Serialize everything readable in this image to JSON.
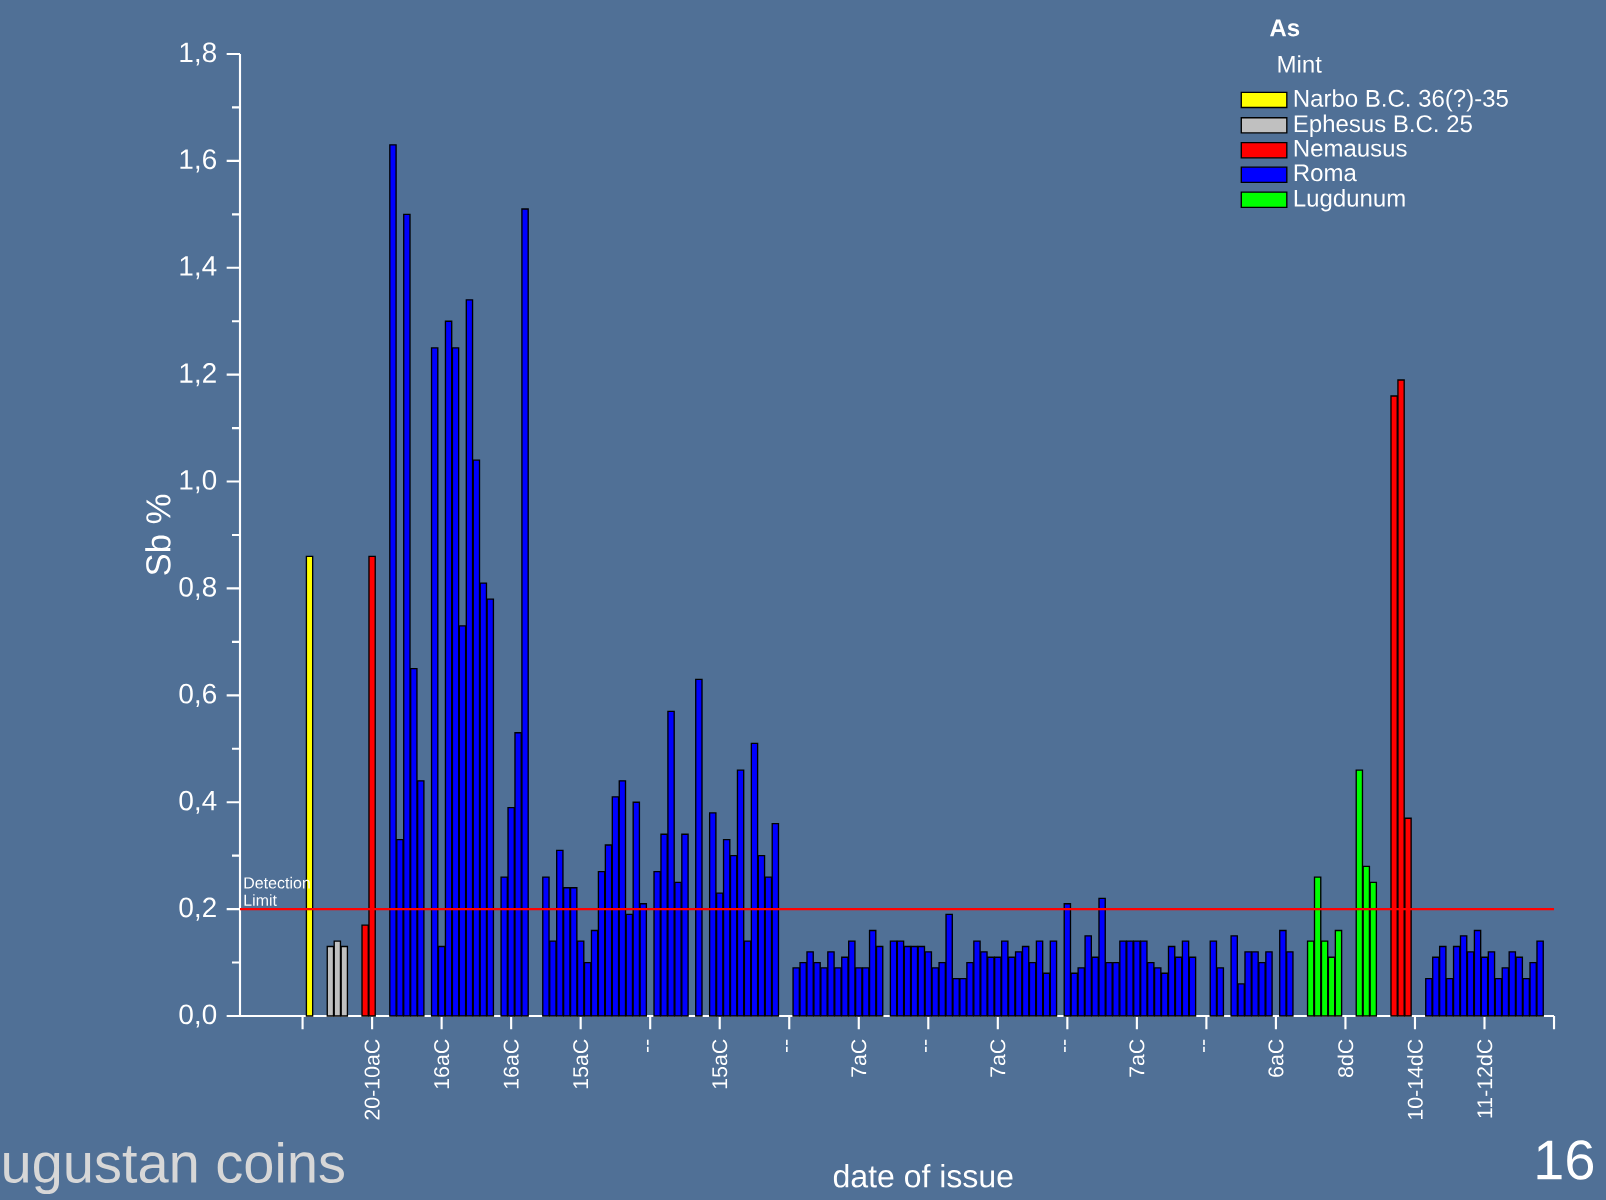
{
  "chart_data": {
    "type": "bar",
    "xlabel": "date of issue",
    "ylabel": "Sb %",
    "legend_title": "As",
    "legend": "top right",
    "ylim": [
      0,
      1.8
    ],
    "categories": [
      null,
      null,
      null,
      null,
      null,
      null,
      null,
      null,
      null,
      null,
      "20-10aC",
      null,
      null,
      null,
      null,
      null,
      null,
      null,
      null,
      null,
      "16aC",
      null,
      null,
      null,
      null,
      null,
      null,
      null,
      null,
      null,
      "16aC",
      null,
      null,
      null,
      null,
      null,
      null,
      null,
      null,
      null,
      "15aC",
      null,
      null,
      null,
      null,
      null,
      null,
      null,
      null,
      null,
      "--",
      null,
      null,
      null,
      null,
      null,
      null,
      null,
      null,
      null,
      "15aC",
      null,
      null,
      null,
      null,
      null,
      null,
      null,
      null,
      null,
      "--",
      null,
      null,
      null,
      null,
      null,
      null,
      null,
      null,
      null,
      "7aC",
      null,
      null,
      null,
      null,
      null,
      null,
      null,
      null,
      null,
      "--",
      null,
      null,
      null,
      null,
      null,
      null,
      null,
      null,
      null,
      "7aC",
      null,
      null,
      null,
      null,
      null,
      null,
      null,
      null,
      null,
      "--",
      null,
      null,
      null,
      null,
      null,
      null,
      null,
      null,
      null,
      "7aC",
      null,
      null,
      null,
      null,
      null,
      null,
      null,
      null,
      null,
      "--",
      null,
      null,
      null,
      null,
      null,
      null,
      null,
      null,
      null,
      "6aC",
      null,
      null,
      null,
      null,
      null,
      null,
      null,
      null,
      null,
      "8dC",
      null,
      null,
      null,
      null,
      null,
      null,
      null,
      null,
      null,
      "10-14dC",
      null,
      null,
      null,
      null,
      null,
      null,
      null,
      null,
      null,
      "11-12dC",
      null,
      null,
      null,
      null,
      null,
      null,
      null,
      null,
      null,
      null
    ],
    "yticks": [
      {
        "value": 0,
        "label": "0,0"
      },
      {
        "value": 0.2,
        "label": "0,2"
      },
      {
        "value": 0.4,
        "label": "0,4"
      },
      {
        "value": 0.6,
        "label": "0,6"
      },
      {
        "value": 0.8,
        "label": "0,8"
      },
      {
        "value": 1.0,
        "label": "1,0"
      },
      {
        "value": 1.2,
        "label": "1,2"
      },
      {
        "value": 1.4,
        "label": "1,4"
      },
      {
        "value": 1.6,
        "label": "1,6"
      },
      {
        "value": 1.8,
        "label": "1,8"
      }
    ],
    "ref_lines": [
      {
        "axis": "y",
        "value": 0.2,
        "label": "Detection Limit",
        "color": "#ff0000"
      }
    ],
    "annotations": [
      "Mint",
      "ugustan coins",
      "16"
    ],
    "series": [
      {
        "name": "Narbo     B.C. 36(?)-35",
        "color": "#ffff00",
        "values": [
          null,
          0.86,
          null,
          null,
          null,
          null,
          null,
          null,
          null,
          null,
          null,
          null,
          null,
          null,
          null,
          null,
          null,
          null,
          null,
          null,
          null,
          null,
          null,
          null,
          null,
          null,
          null,
          null,
          null,
          null,
          null,
          null,
          null,
          null,
          null,
          null,
          null,
          null,
          null,
          null,
          null,
          null,
          null,
          null,
          null,
          null,
          null,
          null,
          null,
          null,
          null,
          null,
          null,
          null,
          null,
          null,
          null,
          null,
          null,
          null,
          null,
          null,
          null,
          null,
          null,
          null,
          null,
          null,
          null,
          null,
          null,
          null,
          null,
          null,
          null,
          null,
          null,
          null,
          null,
          null,
          null,
          null,
          null,
          null,
          null,
          null,
          null,
          null,
          null,
          null,
          null,
          null,
          null,
          null,
          null,
          null,
          null,
          null,
          null,
          null,
          null,
          null,
          null,
          null,
          null,
          null,
          null,
          null,
          null,
          null,
          null,
          null,
          null,
          null,
          null,
          null,
          null,
          null,
          null,
          null,
          null,
          null,
          null,
          null,
          null,
          null,
          null,
          null,
          null,
          null,
          null,
          null,
          null,
          null,
          null,
          null,
          null,
          null,
          null,
          null,
          null,
          null,
          null,
          null,
          null,
          null,
          null,
          null,
          null,
          null,
          null,
          null,
          null,
          null,
          null,
          null,
          null,
          null,
          null,
          null,
          null,
          null,
          null,
          null,
          null,
          null,
          null,
          null,
          null,
          null,
          null,
          null,
          null,
          null,
          null,
          null,
          null,
          null,
          null,
          null,
          null
        ]
      },
      {
        "name": "Ephesus B.C. 25",
        "color": "#c0c0c0",
        "values": [
          null,
          null,
          null,
          null,
          0.13,
          0.14,
          0.13,
          null,
          null,
          null,
          null,
          null,
          null,
          null,
          null,
          null,
          null,
          null,
          null,
          null,
          null,
          null,
          null,
          null,
          null,
          null,
          null,
          null,
          null,
          null,
          null,
          null,
          null,
          null,
          null,
          null,
          null,
          null,
          null,
          null,
          null,
          null,
          null,
          null,
          null,
          null,
          null,
          null,
          null,
          null,
          null,
          null,
          null,
          null,
          null,
          null,
          null,
          null,
          null,
          null,
          null,
          null,
          null,
          null,
          null,
          null,
          null,
          null,
          null,
          null,
          null,
          null,
          null,
          null,
          null,
          null,
          null,
          null,
          null,
          null,
          null,
          null,
          null,
          null,
          null,
          null,
          null,
          null,
          null,
          null,
          null,
          null,
          null,
          null,
          null,
          null,
          null,
          null,
          null,
          null,
          null,
          null,
          null,
          null,
          null,
          null,
          null,
          null,
          null,
          null,
          null,
          null,
          null,
          null,
          null,
          null,
          null,
          null,
          null,
          null,
          null,
          null,
          null,
          null,
          null,
          null,
          null,
          null,
          null,
          null,
          null,
          null,
          null,
          null,
          null,
          null,
          null,
          null,
          null,
          null,
          null,
          null,
          null,
          null,
          null,
          null,
          null,
          null,
          null,
          null,
          null,
          null,
          null,
          null,
          null,
          null,
          null,
          null,
          null,
          null,
          null,
          null,
          null,
          null,
          null,
          null,
          null,
          null,
          null,
          null,
          null,
          null,
          null,
          null,
          null,
          null,
          null,
          null,
          null,
          null,
          null
        ]
      },
      {
        "name": "Nemausus",
        "color": "#ff0000",
        "values": [
          null,
          null,
          null,
          null,
          null,
          null,
          null,
          null,
          null,
          0.17,
          0.86,
          null,
          null,
          null,
          null,
          null,
          null,
          null,
          null,
          null,
          null,
          null,
          null,
          null,
          null,
          null,
          null,
          null,
          null,
          null,
          null,
          null,
          null,
          null,
          null,
          null,
          null,
          null,
          null,
          null,
          null,
          null,
          null,
          null,
          null,
          null,
          null,
          null,
          null,
          null,
          null,
          null,
          null,
          null,
          null,
          null,
          null,
          null,
          null,
          null,
          null,
          null,
          null,
          null,
          null,
          null,
          null,
          null,
          null,
          null,
          null,
          null,
          null,
          null,
          null,
          null,
          null,
          null,
          null,
          null,
          null,
          null,
          null,
          null,
          null,
          null,
          null,
          null,
          null,
          null,
          null,
          null,
          null,
          null,
          null,
          null,
          null,
          null,
          null,
          null,
          null,
          null,
          null,
          null,
          null,
          null,
          null,
          null,
          null,
          null,
          null,
          null,
          null,
          null,
          null,
          null,
          null,
          null,
          null,
          null,
          null,
          null,
          null,
          null,
          null,
          null,
          null,
          null,
          null,
          null,
          null,
          null,
          null,
          null,
          null,
          null,
          null,
          null,
          null,
          null,
          null,
          null,
          null,
          null,
          null,
          null,
          null,
          null,
          null,
          null,
          null,
          null,
          null,
          null,
          null,
          null,
          null,
          1.16,
          1.19,
          0.37,
          null,
          null,
          null,
          null,
          null,
          null,
          null,
          null,
          null,
          null,
          null,
          null,
          null,
          null,
          null,
          null,
          null,
          null,
          null,
          null,
          null
        ]
      },
      {
        "name": "Roma",
        "color": "#0000ff",
        "values": [
          null,
          null,
          null,
          null,
          null,
          null,
          null,
          null,
          null,
          null,
          null,
          null,
          null,
          1.63,
          0.33,
          1.5,
          0.65,
          0.44,
          null,
          1.25,
          0.13,
          1.3,
          1.25,
          0.73,
          1.34,
          1.04,
          0.81,
          0.78,
          null,
          0.26,
          0.39,
          0.53,
          1.51,
          null,
          null,
          0.26,
          0.14,
          0.31,
          0.24,
          0.24,
          0.14,
          0.1,
          0.16,
          0.27,
          0.32,
          0.41,
          0.44,
          0.19,
          0.4,
          0.21,
          null,
          0.27,
          0.34,
          0.57,
          0.25,
          0.34,
          null,
          0.63,
          null,
          0.38,
          0.23,
          0.33,
          0.3,
          0.46,
          0.14,
          0.51,
          0.3,
          0.26,
          0.36,
          null,
          null,
          0.09,
          0.1,
          0.12,
          0.1,
          0.09,
          0.12,
          0.09,
          0.11,
          0.14,
          0.09,
          0.09,
          0.16,
          0.13,
          null,
          0.14,
          0.14,
          0.13,
          0.13,
          0.13,
          0.12,
          0.09,
          0.1,
          0.19,
          0.07,
          0.07,
          0.1,
          0.14,
          0.12,
          0.11,
          0.11,
          0.14,
          0.11,
          0.12,
          0.13,
          0.1,
          0.14,
          0.08,
          0.14,
          null,
          0.21,
          0.08,
          0.09,
          0.15,
          0.11,
          0.22,
          0.1,
          0.1,
          0.14,
          0.14,
          0.14,
          0.14,
          0.1,
          0.09,
          0.08,
          0.13,
          0.11,
          0.14,
          0.11,
          null,
          null,
          0.14,
          0.09,
          null,
          0.15,
          0.06,
          0.12,
          0.12,
          0.1,
          0.12,
          null,
          0.16,
          0.12,
          null,
          null,
          null,
          null,
          null,
          null,
          null,
          null,
          null,
          null,
          null,
          null,
          null,
          null,
          null,
          null,
          null,
          null,
          null,
          0.07,
          0.11,
          0.13,
          0.07,
          0.13,
          0.15,
          0.12,
          0.16,
          0.11,
          0.12,
          0.07,
          0.09,
          0.12,
          0.11,
          0.07,
          0.1,
          0.14,
          null,
          null
        ]
      },
      {
        "name": "Lugdunum",
        "color": "#00ff00",
        "values": [
          null,
          null,
          null,
          null,
          null,
          null,
          null,
          null,
          null,
          null,
          null,
          null,
          null,
          null,
          null,
          null,
          null,
          null,
          null,
          null,
          null,
          null,
          null,
          null,
          null,
          null,
          null,
          null,
          null,
          null,
          null,
          null,
          null,
          null,
          null,
          null,
          null,
          null,
          null,
          null,
          null,
          null,
          null,
          null,
          null,
          null,
          null,
          null,
          null,
          null,
          null,
          null,
          null,
          null,
          null,
          null,
          null,
          null,
          null,
          null,
          null,
          null,
          null,
          null,
          null,
          null,
          null,
          null,
          null,
          null,
          null,
          null,
          null,
          null,
          null,
          null,
          null,
          null,
          null,
          null,
          null,
          null,
          null,
          null,
          null,
          null,
          null,
          null,
          null,
          null,
          null,
          null,
          null,
          null,
          null,
          null,
          null,
          null,
          null,
          null,
          null,
          null,
          null,
          null,
          null,
          null,
          null,
          null,
          null,
          null,
          null,
          null,
          null,
          null,
          null,
          null,
          null,
          null,
          null,
          null,
          null,
          null,
          null,
          null,
          null,
          null,
          null,
          null,
          null,
          null,
          null,
          null,
          null,
          null,
          null,
          null,
          null,
          null,
          null,
          null,
          null,
          null,
          null,
          null,
          null,
          0.14,
          0.26,
          0.14,
          0.11,
          0.16,
          null,
          null,
          0.46,
          0.28,
          0.25,
          null,
          null,
          null,
          null,
          null,
          null,
          null,
          null,
          null,
          null,
          null,
          null,
          null,
          null,
          null,
          null,
          null,
          null,
          null,
          null,
          null,
          null,
          null,
          null,
          null,
          null
        ]
      }
    ]
  }
}
